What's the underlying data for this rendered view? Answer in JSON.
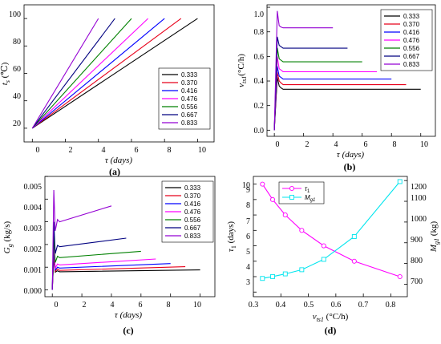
{
  "legend_labels": [
    "0.333",
    "0.370",
    "0.416",
    "0.476",
    "0.556",
    "0.667",
    "0.833"
  ],
  "series_colors": [
    "#000000",
    "#e8001a",
    "#0000ff",
    "#ff00ff",
    "#008000",
    "#000080",
    "#9400d3"
  ],
  "chart_data": [
    {
      "type": "line",
      "panel": "(a)",
      "xlabel": "τ (days)",
      "ylabel": "t_s (℃)",
      "xlim": [
        -0.5,
        11
      ],
      "ylim": [
        10,
        110
      ],
      "xticks": [
        0,
        2,
        4,
        6,
        8,
        10
      ],
      "yticks": [
        20,
        40,
        60,
        80,
        100
      ],
      "legend": "lower right",
      "series": [
        {
          "name": "0.333",
          "x": [
            0,
            10
          ],
          "y": [
            20,
            100
          ]
        },
        {
          "name": "0.370",
          "x": [
            0,
            9
          ],
          "y": [
            20,
            100
          ]
        },
        {
          "name": "0.416",
          "x": [
            0,
            8
          ],
          "y": [
            20,
            100
          ]
        },
        {
          "name": "0.476",
          "x": [
            0,
            7
          ],
          "y": [
            20,
            100
          ]
        },
        {
          "name": "0.556",
          "x": [
            0,
            6
          ],
          "y": [
            20,
            100
          ]
        },
        {
          "name": "0.667",
          "x": [
            0,
            5
          ],
          "y": [
            20,
            100
          ]
        },
        {
          "name": "0.833",
          "x": [
            0,
            4
          ],
          "y": [
            20,
            100
          ]
        }
      ]
    },
    {
      "type": "line",
      "panel": "(b)",
      "xlabel": "τ (days)",
      "ylabel": "v_ts1 (°C/h)",
      "xlim": [
        -0.5,
        11
      ],
      "ylim": [
        -0.05,
        1.02
      ],
      "xticks": [
        0,
        2,
        4,
        6,
        8,
        10
      ],
      "yticks": [
        0.0,
        0.2,
        0.4,
        0.6,
        0.8,
        1.0
      ],
      "legend": "upper right",
      "series": [
        {
          "name": "0.333",
          "x": [
            0,
            0.2,
            0.33,
            0.45,
            0.6,
            10
          ],
          "y": [
            0,
            0.43,
            0.36,
            0.345,
            0.333,
            0.333
          ]
        },
        {
          "name": "0.370",
          "x": [
            0,
            0.2,
            0.33,
            0.45,
            0.6,
            9
          ],
          "y": [
            0,
            0.47,
            0.4,
            0.385,
            0.37,
            0.37
          ]
        },
        {
          "name": "0.416",
          "x": [
            0,
            0.2,
            0.33,
            0.45,
            0.6,
            8
          ],
          "y": [
            0,
            0.52,
            0.44,
            0.43,
            0.416,
            0.416
          ]
        },
        {
          "name": "0.476",
          "x": [
            0,
            0.2,
            0.33,
            0.45,
            0.6,
            7
          ],
          "y": [
            0,
            0.6,
            0.5,
            0.49,
            0.476,
            0.476
          ]
        },
        {
          "name": "0.556",
          "x": [
            0,
            0.2,
            0.33,
            0.45,
            0.6,
            6
          ],
          "y": [
            0,
            0.67,
            0.58,
            0.57,
            0.556,
            0.556
          ]
        },
        {
          "name": "0.667",
          "x": [
            0,
            0.2,
            0.33,
            0.45,
            0.6,
            5
          ],
          "y": [
            0,
            0.76,
            0.69,
            0.68,
            0.667,
            0.667
          ]
        },
        {
          "name": "0.833",
          "x": [
            0,
            0.2,
            0.33,
            0.45,
            0.6,
            4
          ],
          "y": [
            0,
            0.97,
            0.85,
            0.84,
            0.833,
            0.833
          ]
        }
      ]
    },
    {
      "type": "line",
      "panel": "(c)",
      "xlabel": "τ (days)",
      "ylabel": "G_g (kg/s)",
      "xlim": [
        -0.5,
        11
      ],
      "ylim": [
        -0.0003,
        0.005
      ],
      "xticks": [
        0,
        2,
        4,
        6,
        8,
        10
      ],
      "yticks": [
        0.0,
        0.001,
        0.002,
        0.003,
        0.004,
        0.005
      ],
      "ytick_labels": [
        "0.000",
        "0.001",
        "0.002",
        "0.003",
        "0.004",
        "0.005"
      ],
      "legend": "upper right",
      "series": [
        {
          "name": "0.333",
          "x": [
            0,
            0.1,
            0.2,
            0.35,
            0.5,
            10
          ],
          "y": [
            0,
            0.0014,
            0.00078,
            0.00084,
            0.0008,
            0.00088
          ]
        },
        {
          "name": "0.370",
          "x": [
            0,
            0.1,
            0.2,
            0.35,
            0.5,
            9
          ],
          "y": [
            0,
            0.0016,
            0.00082,
            0.00092,
            0.00086,
            0.00102
          ]
        },
        {
          "name": "0.416",
          "x": [
            0,
            0.1,
            0.2,
            0.35,
            0.5,
            8
          ],
          "y": [
            0,
            0.0018,
            0.00088,
            0.001,
            0.00096,
            0.00116
          ]
        },
        {
          "name": "0.476",
          "x": [
            0,
            0.1,
            0.2,
            0.35,
            0.5,
            7
          ],
          "y": [
            0,
            0.002,
            0.00096,
            0.00114,
            0.0011,
            0.00136
          ]
        },
        {
          "name": "0.556",
          "x": [
            0,
            0.1,
            0.2,
            0.35,
            0.5,
            6
          ],
          "y": [
            0,
            0.0024,
            0.0012,
            0.00148,
            0.00142,
            0.0017
          ]
        },
        {
          "name": "0.667",
          "x": [
            0,
            0.1,
            0.2,
            0.35,
            0.5,
            5
          ],
          "y": [
            0,
            0.003,
            0.0016,
            0.00196,
            0.0019,
            0.00228
          ]
        },
        {
          "name": "0.833",
          "x": [
            0,
            0.1,
            0.2,
            0.35,
            0.5,
            4
          ],
          "y": [
            0,
            0.0044,
            0.0026,
            0.0031,
            0.003,
            0.0037
          ]
        }
      ]
    },
    {
      "type": "line",
      "panel": "(d)",
      "xlabel": "v_ts1 (°C/h)",
      "ylabel": "τ_1 (days)",
      "y2label": "M_g1 (kg)",
      "xlim": [
        0.3,
        0.86
      ],
      "ylim": [
        2.7,
        10.5
      ],
      "y2lim": [
        640,
        1220
      ],
      "xticks": [
        0.3,
        0.4,
        0.5,
        0.6,
        0.7,
        0.8
      ],
      "yticks": [
        3,
        4,
        5,
        6,
        7,
        8,
        9,
        10
      ],
      "y2ticks": [
        700,
        800,
        900,
        1000,
        1100,
        1200
      ],
      "legend": "upper center",
      "series": [
        {
          "name": "τ_1",
          "axis": "left",
          "color": "#ff00ff",
          "x": [
            0.333,
            0.37,
            0.416,
            0.476,
            0.556,
            0.667,
            0.833
          ],
          "y": [
            10,
            9,
            8,
            7,
            6,
            5,
            4
          ]
        },
        {
          "name": "M_g1",
          "axis": "right",
          "color": "#00e5ee",
          "x": [
            0.333,
            0.37,
            0.416,
            0.476,
            0.556,
            0.667,
            0.833
          ],
          "y": [
            728,
            737,
            750,
            770,
            820,
            930,
            1195
          ]
        }
      ]
    }
  ],
  "panels": [
    {
      "label": "(a)",
      "xlabel": "τ (days)",
      "xtick_labels": [
        "0",
        "2",
        "4",
        "6",
        "8",
        "10"
      ],
      "ytick_labels": [
        "20",
        "40",
        "60",
        "80",
        "100"
      ]
    },
    {
      "label": "(b)",
      "xlabel": "τ (days)",
      "xtick_labels": [
        "0",
        "2",
        "4",
        "6",
        "8",
        "10"
      ],
      "ytick_labels": [
        "0.0",
        "0.2",
        "0.4",
        "0.6",
        "0.8",
        "1.0"
      ]
    },
    {
      "label": "(c)",
      "xlabel": "τ (days)",
      "xtick_labels": [
        "0",
        "2",
        "4",
        "6",
        "8",
        "10"
      ],
      "ytick_labels": [
        "0.000",
        "0.001",
        "0.002",
        "0.003",
        "0.004",
        "0.005"
      ]
    },
    {
      "label": "(d)",
      "xtick_labels": [
        "0.3",
        "0.4",
        "0.5",
        "0.6",
        "0.7",
        "0.8"
      ],
      "ytick_labels": [
        "3",
        "4",
        "5",
        "6",
        "7",
        "8",
        "9",
        "10"
      ],
      "y2tick_labels": [
        "700",
        "800",
        "900",
        "1000",
        "1100",
        "1200"
      ]
    }
  ]
}
